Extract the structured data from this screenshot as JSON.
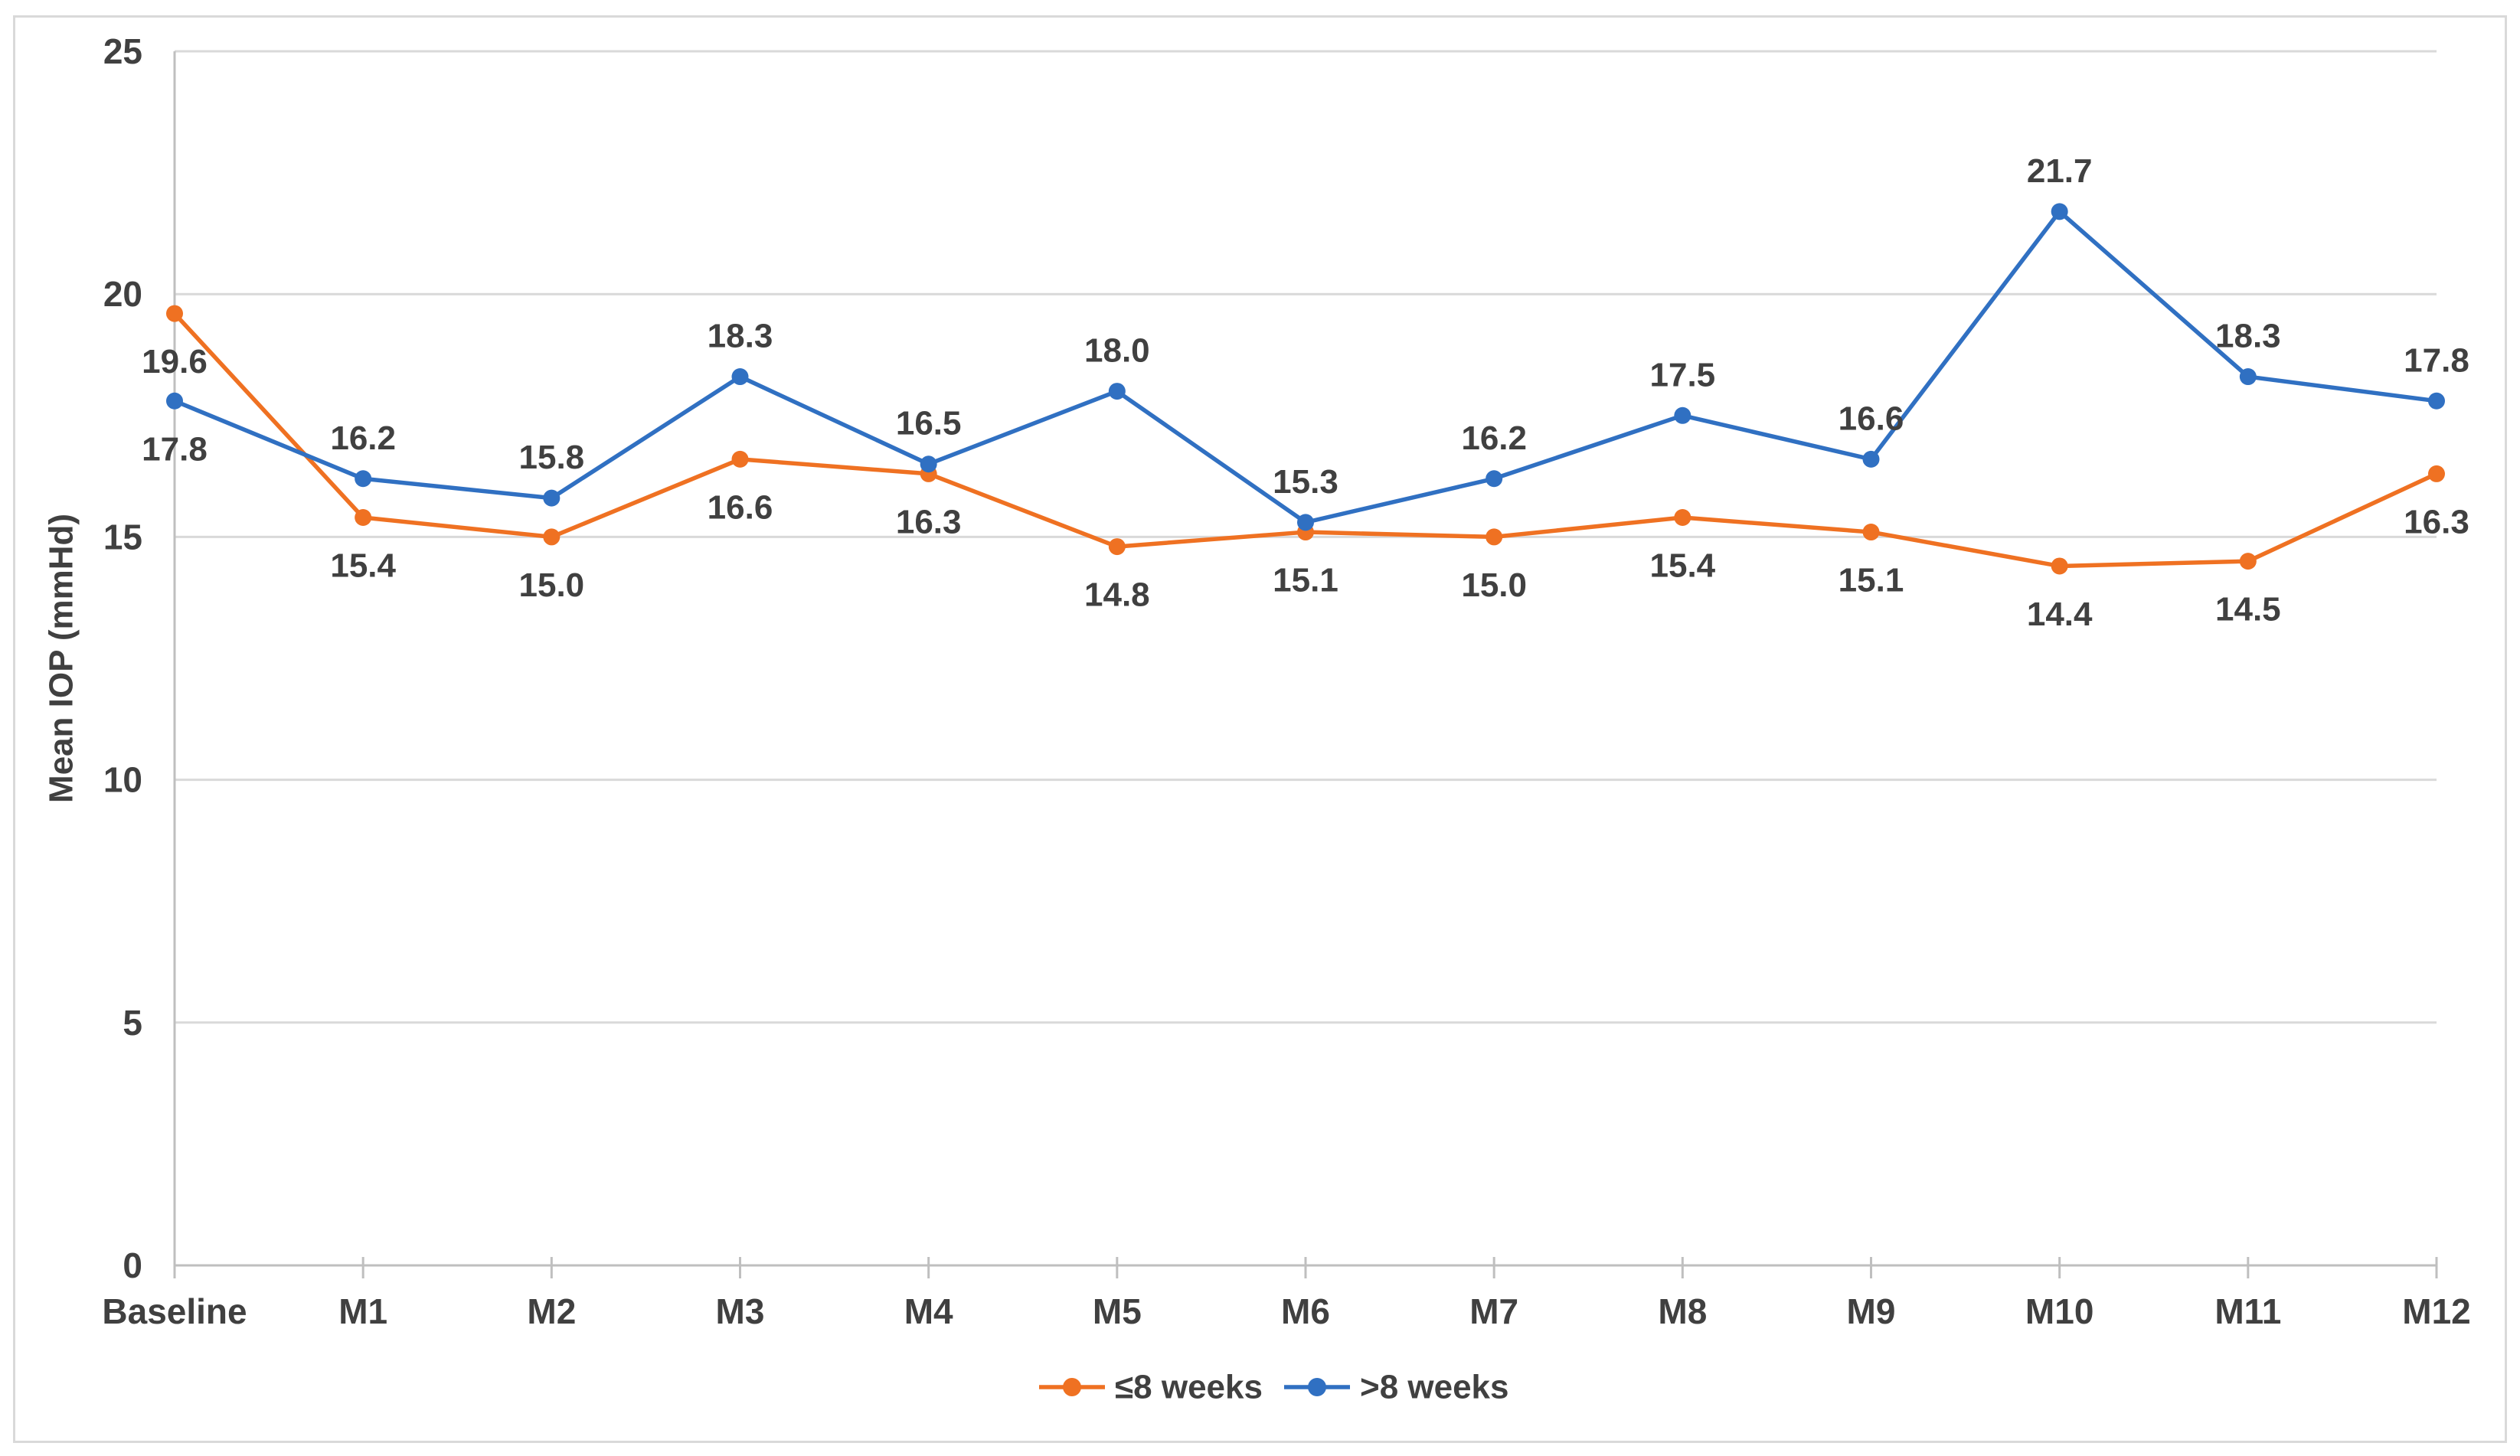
{
  "figure": {
    "background_color": "#FFFFFF",
    "border_color": "#D9D9D9"
  },
  "chart_data": {
    "type": "line",
    "title": "",
    "xlabel": "",
    "ylabel": "Mean IOP (mmHd)",
    "categories": [
      "Baseline",
      "M1",
      "M2",
      "M3",
      "M4",
      "M5",
      "M6",
      "M7",
      "M8",
      "M9",
      "M10",
      "M11",
      "M12"
    ],
    "series": [
      {
        "name": "≤8 weeks",
        "color": "#EF7122",
        "values": [
          19.6,
          15.4,
          15.0,
          16.6,
          16.3,
          14.8,
          15.1,
          15.0,
          15.4,
          15.1,
          14.4,
          14.5,
          16.3
        ],
        "label_position": "below",
        "label_position_exceptions": {}
      },
      {
        "name": ">8 weeks",
        "color": "#3070C2",
        "values": [
          17.8,
          16.2,
          15.8,
          18.3,
          16.5,
          18.0,
          15.3,
          16.2,
          17.5,
          16.6,
          21.7,
          18.3,
          17.8
        ],
        "label_position": "above",
        "label_position_exceptions": {
          "0": "below"
        }
      }
    ],
    "ylim": [
      0,
      25
    ],
    "yticks": [
      0,
      5,
      10,
      15,
      20,
      25
    ],
    "grid": true,
    "gridline_color": "#D9D9D9",
    "axis_line_color": "#BFBFBF",
    "tick_mark_color": "#BFBFBF",
    "text_color": "#404040",
    "data_labels": true,
    "data_label_format": "one_decimal",
    "legend_position": "bottom",
    "legend": [
      "≤8 weeks",
      ">8 weeks"
    ],
    "marker": "circle"
  }
}
